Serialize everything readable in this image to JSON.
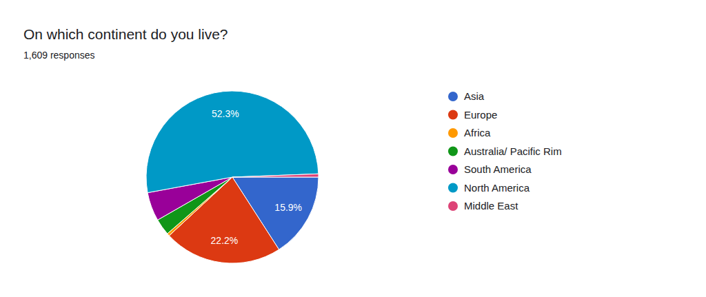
{
  "chart_data": {
    "type": "pie",
    "title": "On which continent do you live?",
    "subtitle": "1,609 responses",
    "categories": [
      "Asia",
      "Europe",
      "Africa",
      "Australia/ Pacific Rim",
      "South America",
      "North America",
      "Middle East"
    ],
    "values": [
      15.9,
      22.2,
      0.5,
      3.1,
      5.4,
      52.3,
      0.6
    ],
    "value_labels": [
      "15.9%",
      "22.2%",
      null,
      null,
      null,
      "52.3%",
      null
    ],
    "colors": [
      "#3366cc",
      "#dc3912",
      "#ff9900",
      "#109618",
      "#990099",
      "#0099c6",
      "#dd4477"
    ],
    "data_labels": true,
    "legend": "right"
  }
}
